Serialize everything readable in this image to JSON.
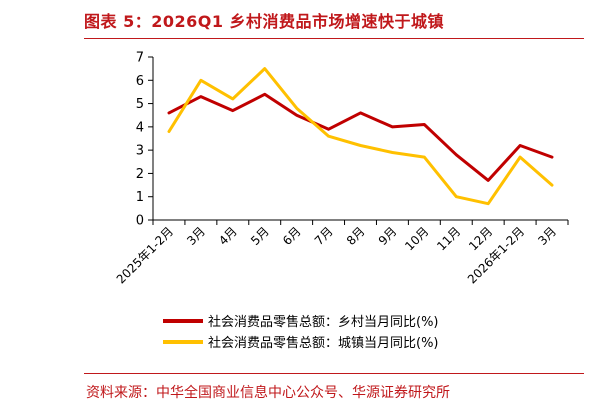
{
  "title": "图表 5：2026Q1 乡村消费品市场增速快于城镇",
  "source": "资料来源：中华全国商业信息中心公众号、华源证券研究所",
  "chart_data": {
    "type": "line",
    "categories": [
      "2025年1-2月",
      "3月",
      "4月",
      "5月",
      "6月",
      "7月",
      "8月",
      "9月",
      "10月",
      "11月",
      "12月",
      "2026年1-2月",
      "3月"
    ],
    "series": [
      {
        "name": "社会消费品零售总额：乡村当月同比(%)",
        "color": "#c00000",
        "values": [
          4.6,
          5.3,
          4.7,
          5.4,
          4.5,
          3.9,
          4.6,
          4.0,
          4.1,
          2.8,
          1.7,
          3.2,
          2.7
        ]
      },
      {
        "name": "社会消费品零售总额：城镇当月同比(%)",
        "color": "#ffc000",
        "values": [
          3.8,
          6.0,
          5.2,
          6.5,
          4.8,
          3.6,
          3.2,
          2.9,
          2.7,
          1.0,
          0.7,
          2.7,
          1.5
        ]
      }
    ],
    "ylim": [
      0,
      7
    ],
    "yticks": [
      0,
      1,
      2,
      3,
      4,
      5,
      6,
      7
    ],
    "grid": false,
    "legend": "bottom"
  }
}
